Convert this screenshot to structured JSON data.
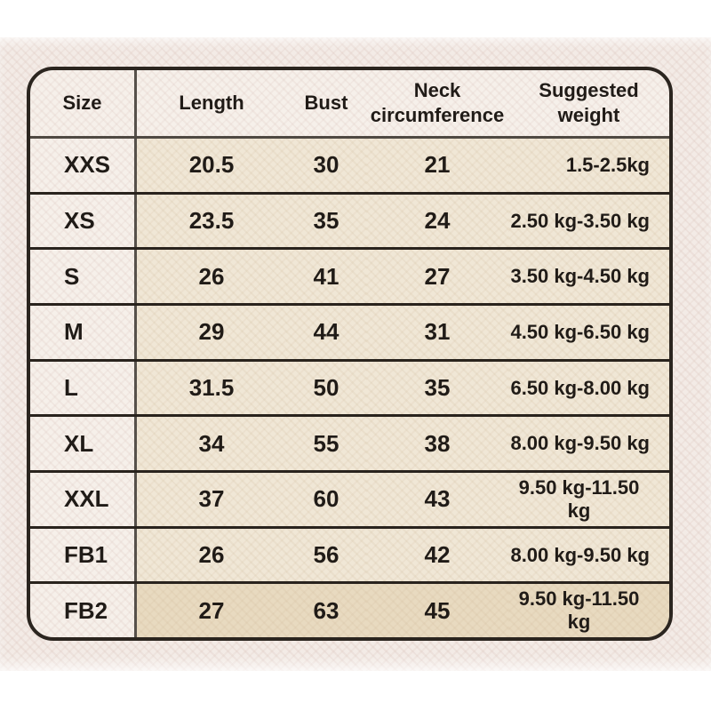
{
  "table": {
    "columns": [
      {
        "key": "size",
        "label": "Size"
      },
      {
        "key": "length",
        "label": "Length"
      },
      {
        "key": "bust",
        "label": "Bust"
      },
      {
        "key": "neck",
        "label": "Neck circumference"
      },
      {
        "key": "weight",
        "label": "Suggested weight"
      }
    ],
    "rows": [
      {
        "size": "XXS",
        "length": "20.5",
        "bust": "30",
        "neck": "21",
        "weight": "1.5-2.5kg"
      },
      {
        "size": "XS",
        "length": "23.5",
        "bust": "35",
        "neck": "24",
        "weight": "2.50 kg-3.50 kg"
      },
      {
        "size": "S",
        "length": "26",
        "bust": "41",
        "neck": "27",
        "weight": "3.50 kg-4.50 kg"
      },
      {
        "size": "M",
        "length": "29",
        "bust": "44",
        "neck": "31",
        "weight": "4.50 kg-6.50 kg"
      },
      {
        "size": "L",
        "length": "31.5",
        "bust": "50",
        "neck": "35",
        "weight": "6.50 kg-8.00 kg"
      },
      {
        "size": "XL",
        "length": "34",
        "bust": "55",
        "neck": "38",
        "weight": "8.00 kg-9.50 kg"
      },
      {
        "size": "XXL",
        "length": "37",
        "bust": "60",
        "neck": "43",
        "weight": "9.50 kg-11.50 kg"
      },
      {
        "size": "FB1",
        "length": "26",
        "bust": "56",
        "neck": "42",
        "weight": "8.00 kg-9.50 kg"
      },
      {
        "size": "FB2",
        "length": "27",
        "bust": "63",
        "neck": "45",
        "weight": "9.50 kg-11.50 kg"
      }
    ]
  },
  "colors": {
    "page_band": "#f3ebe6",
    "table_background": "#f6f0ea",
    "data_cell": "#f0e7d6",
    "first_row_cell": "#e9dcc3",
    "last_row_cell": "#e8dac0",
    "outer_border": "#2b251f",
    "column_divider": "#56504a",
    "header_rule": "#4f4942",
    "row_rule": "#29231d",
    "text": "#201b17"
  }
}
